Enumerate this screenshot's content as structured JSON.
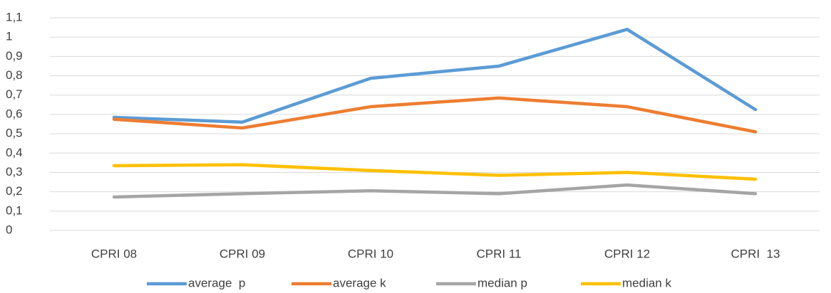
{
  "chart_data": {
    "type": "line",
    "categories": [
      "CPRI 08",
      "CPRI 09",
      "CPRI 10",
      "CPRI 11",
      "CPRI 12",
      "CPRI  13"
    ],
    "series": [
      {
        "name": "average  p",
        "color": "#5b9bd5",
        "values": [
          0.585,
          0.56,
          0.787,
          0.85,
          1.04,
          0.625
        ]
      },
      {
        "name": "average k",
        "color": "#ed7d31",
        "values": [
          0.575,
          0.53,
          0.64,
          0.685,
          0.64,
          0.51
        ]
      },
      {
        "name": "median p",
        "color": "#a5a5a5",
        "values": [
          0.173,
          0.19,
          0.205,
          0.19,
          0.235,
          0.19
        ]
      },
      {
        "name": "median k",
        "color": "#ffc000",
        "values": [
          0.335,
          0.34,
          0.31,
          0.285,
          0.3,
          0.265
        ]
      }
    ],
    "ylim": [
      0,
      1.1
    ],
    "yticks": [
      0,
      {
        "value": 0.1,
        "label": "0,1"
      },
      {
        "value": 0.2,
        "label": "0,2"
      },
      {
        "value": 0.3,
        "label": "0,3"
      },
      {
        "value": 0.4,
        "label": "0,4"
      },
      {
        "value": 0.5,
        "label": "0,5"
      },
      {
        "value": 0.6,
        "label": "0,6"
      },
      {
        "value": 0.7,
        "label": "0,7"
      },
      {
        "value": 0.8,
        "label": "0,8"
      },
      {
        "value": 0.9,
        "label": "0,9"
      },
      1,
      {
        "value": 1.1,
        "label": "1,1"
      }
    ],
    "grid": true,
    "legend": "bottom"
  }
}
